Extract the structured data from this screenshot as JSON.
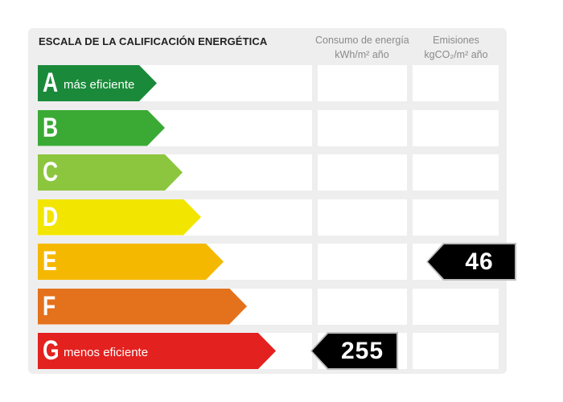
{
  "title": "ESCALA DE LA CALIFICACIÓN ENERGÉTICA",
  "columns": {
    "energy": {
      "line1": "Consumo de energía",
      "line2": "kWh/m² año"
    },
    "emissions": {
      "line1": "Emisiones",
      "line2": "kgCO₂/m² año"
    }
  },
  "ratings": [
    {
      "letter": "A",
      "label": "más eficiente",
      "color": "#1a8a3a"
    },
    {
      "letter": "B",
      "label": "",
      "color": "#3aaa35"
    },
    {
      "letter": "C",
      "label": "",
      "color": "#8cc63f"
    },
    {
      "letter": "D",
      "label": "",
      "color": "#f2e500"
    },
    {
      "letter": "E",
      "label": "",
      "color": "#f5b800"
    },
    {
      "letter": "F",
      "label": "",
      "color": "#e4711b"
    },
    {
      "letter": "G",
      "label": "menos eficiente",
      "color": "#e3211f"
    }
  ],
  "results": {
    "energy": {
      "value": "255",
      "rating": "G"
    },
    "emissions": {
      "value": "46",
      "rating": "E"
    }
  }
}
